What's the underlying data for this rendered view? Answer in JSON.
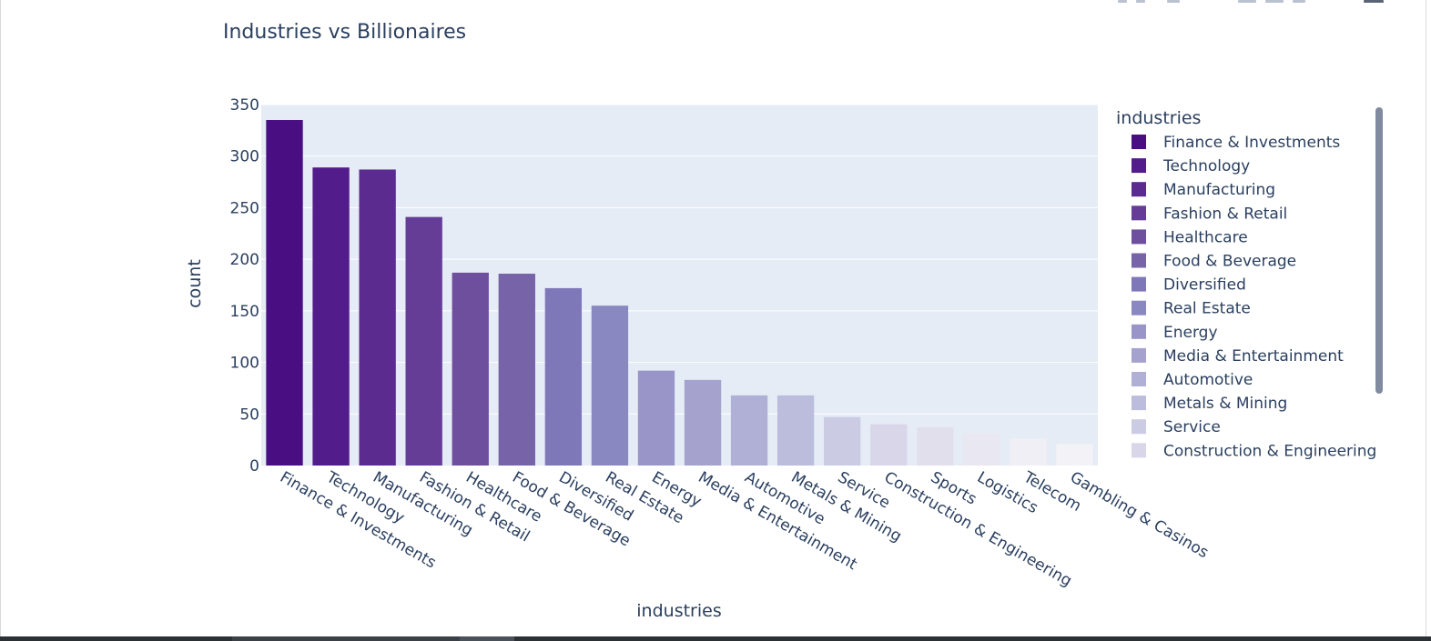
{
  "chart_data": {
    "type": "bar",
    "title": "Industries vs Billionaires",
    "xlabel": "industries",
    "ylabel": "count",
    "ylim": [
      0,
      350
    ],
    "yticks": [
      0,
      50,
      100,
      150,
      200,
      250,
      300,
      350
    ],
    "legend_title": "industries",
    "legend_position": "right",
    "grid": true,
    "categories": [
      "Finance & Investments",
      "Technology",
      "Manufacturing",
      "Fashion & Retail",
      "Healthcare",
      "Food & Beverage",
      "Diversified",
      "Real Estate",
      "Energy",
      "Media & Entertainment",
      "Automotive",
      "Metals & Mining",
      "Service",
      "Construction & Engineering",
      "Sports",
      "Logistics",
      "Telecom",
      "Gambling & Casinos"
    ],
    "values": [
      335,
      289,
      287,
      241,
      187,
      186,
      172,
      155,
      92,
      83,
      68,
      68,
      47,
      40,
      37,
      31,
      26,
      21
    ],
    "colors": [
      "#4a0e83",
      "#521d8a",
      "#5b2b90",
      "#653d97",
      "#6e4f9e",
      "#7763a8",
      "#7f78b8",
      "#8a88c0",
      "#9a95c8",
      "#a5a2ce",
      "#b0afd6",
      "#bcbcdc",
      "#cbcbe3",
      "#d8d6e8",
      "#e1dfec",
      "#e9e7f1",
      "#f0eff5",
      "#f3f2f6"
    ],
    "legend_visible_count": 14
  }
}
